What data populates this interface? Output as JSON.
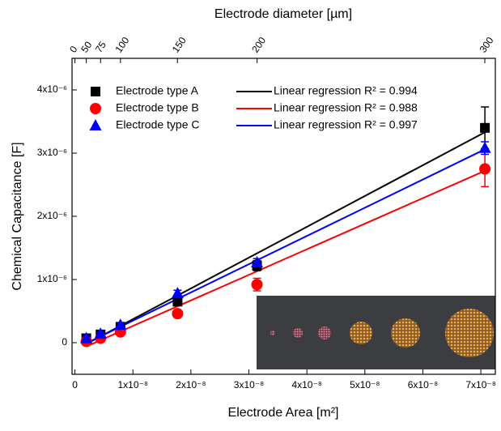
{
  "chart_data": {
    "type": "scatter",
    "xlabel": "Electrode Area [m²]",
    "ylabel": "Chemical Capacitance [F]",
    "x2label": "Electrode diameter [µm]",
    "xlim": [
      -5e-10,
      7.25e-08
    ],
    "ylim": [
      -5e-07,
      4.5e-06
    ],
    "xticks": [
      0,
      {
        "value": 1e-08,
        "label": "1x10⁻⁸"
      },
      {
        "value": 2e-08,
        "label": "2x10⁻⁸"
      },
      {
        "value": 3e-08,
        "label": "3x10⁻⁸"
      },
      {
        "value": 4e-08,
        "label": "4x10⁻⁸"
      },
      {
        "value": 5e-08,
        "label": "5x10⁻⁸"
      },
      {
        "value": 6e-08,
        "label": "6x10⁻⁸"
      },
      {
        "value": 7e-08,
        "label": "7x10⁻⁸"
      }
    ],
    "yticks": [
      0,
      {
        "value": 1e-06,
        "label": "1x10⁻⁶"
      },
      {
        "value": 2e-06,
        "label": "2x10⁻⁶"
      },
      {
        "value": 3e-06,
        "label": "3x10⁻⁶"
      },
      {
        "value": 4e-06,
        "label": "4x10⁻⁶"
      }
    ],
    "x2ticks": [
      0,
      50,
      75,
      100,
      150,
      200,
      300
    ],
    "x": [
      1.96e-09,
      4.42e-09,
      7.85e-09,
      1.77e-08,
      3.14e-08,
      7.07e-08
    ],
    "series": [
      {
        "name": "Electrode type A",
        "color": "#000000",
        "marker": "square",
        "values": [
          7e-08,
          1.3e-07,
          2.5e-07,
          6.5e-07,
          1.22e-06,
          3.4e-06
        ],
        "errors": [
          3e-08,
          3e-08,
          3e-08,
          5e-08,
          8e-08,
          3.3e-07
        ]
      },
      {
        "name": "Electrode type B",
        "color": "#ff0000",
        "marker": "circle",
        "values": [
          2e-08,
          7e-08,
          1.7e-07,
          4.6e-07,
          9.2e-07,
          2.75e-06
        ],
        "errors": [
          3e-08,
          3e-08,
          4e-08,
          5e-08,
          1e-07,
          2.8e-07
        ]
      },
      {
        "name": "Electrode type C",
        "color": "#0000ff",
        "marker": "triangle",
        "values": [
          7e-08,
          1.4e-07,
          2.8e-07,
          7.8e-07,
          1.27e-06,
          3.08e-06
        ],
        "errors": [
          3e-08,
          3e-08,
          4e-08,
          5e-08,
          6e-08,
          1e-07
        ]
      }
    ],
    "lines": [
      {
        "name": "Linear regression R² = 0.994",
        "color": "#000000",
        "x": [
          1.96e-09,
          7.07e-08
        ],
        "values": [
          -2e-08,
          3.33e-06
        ]
      },
      {
        "name": "Linear regression R² = 0.988",
        "color": "#ff0000",
        "x": [
          1.96e-09,
          7.07e-08
        ],
        "values": [
          -6e-08,
          2.72e-06
        ]
      },
      {
        "name": "Linear regression R² = 0.997",
        "color": "#0000ff",
        "x": [
          1.96e-09,
          7.07e-08
        ],
        "values": [
          -1e-08,
          3.06e-06
        ]
      }
    ]
  }
}
